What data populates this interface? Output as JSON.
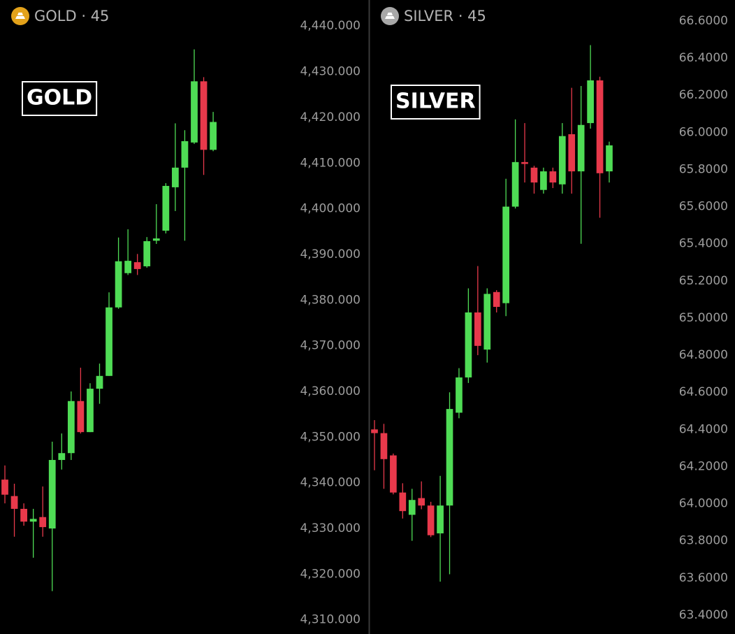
{
  "chart_data": [
    {
      "type": "candlestick",
      "title": "GOLD · 45",
      "annotation": "GOLD",
      "icon_color": "#e3a21a",
      "up_color": "#4fdc55",
      "down_color": "#e8394b",
      "open": [
        4340.7,
        4337.1,
        4334.3,
        4331.5,
        4332.5,
        4330.0,
        4345.0,
        4346.5,
        4357.9,
        4351.1,
        4360.6,
        4363.4,
        4378.4,
        4385.9,
        4388.3,
        4387.4,
        4393.0,
        4395.2,
        4404.7,
        4409.0,
        4414.5,
        4427.9,
        4412.9
      ],
      "high": [
        4343.8,
        4339.8,
        4335.5,
        4334.3,
        4339.2,
        4349.0,
        4350.8,
        4360.0,
        4365.2,
        4361.8,
        4366.1,
        4381.7,
        4393.7,
        4395.5,
        4390.1,
        4393.8,
        4401.0,
        4405.6,
        4418.7,
        4417.2,
        4434.9,
        4428.8,
        4421.2
      ],
      "low": [
        4335.5,
        4328.2,
        4330.6,
        4323.6,
        4328.2,
        4316.3,
        4342.9,
        4345.0,
        4350.8,
        4351.1,
        4357.3,
        4363.4,
        4378.1,
        4385.5,
        4385.5,
        4387.1,
        4392.3,
        4394.6,
        4399.5,
        4393.0,
        4414.2,
        4407.4,
        4412.6
      ],
      "close": [
        4337.4,
        4334.3,
        4331.5,
        4332.1,
        4330.3,
        4345.0,
        4346.5,
        4357.9,
        4351.1,
        4360.6,
        4363.4,
        4378.4,
        4388.5,
        4388.6,
        4386.8,
        4392.9,
        4393.5,
        4405.0,
        4409.0,
        4414.8,
        4427.9,
        4412.9,
        4419.0
      ],
      "ylim": [
        4306.9,
        4445.7
      ],
      "yticks": [
        {
          "value": 4440,
          "label": "4,440.000"
        },
        {
          "value": 4430,
          "label": "4,430.000"
        },
        {
          "value": 4420,
          "label": "4,420.000"
        },
        {
          "value": 4410,
          "label": "4,410.000"
        },
        {
          "value": 4400,
          "label": "4,400.000"
        },
        {
          "value": 4390,
          "label": "4,390.000"
        },
        {
          "value": 4380,
          "label": "4,380.000"
        },
        {
          "value": 4370,
          "label": "4,370.000"
        },
        {
          "value": 4360,
          "label": "4,360.000"
        },
        {
          "value": 4350,
          "label": "4,350.000"
        },
        {
          "value": 4340,
          "label": "4,340.000"
        },
        {
          "value": 4330,
          "label": "4,330.000"
        },
        {
          "value": 4320,
          "label": "4,320.000"
        },
        {
          "value": 4310,
          "label": "4,310.000"
        }
      ]
    },
    {
      "type": "candlestick",
      "title": "SILVER · 45",
      "annotation": "SILVER",
      "icon_color": "#a8a8a8",
      "up_color": "#4fdc55",
      "down_color": "#e8394b",
      "open": [
        64.4,
        64.38,
        64.26,
        64.06,
        63.94,
        64.03,
        63.99,
        63.84,
        63.99,
        64.49,
        64.68,
        65.03,
        64.83,
        65.14,
        65.08,
        65.6,
        65.84,
        65.81,
        65.69,
        65.79,
        65.72,
        65.99,
        65.79,
        66.05,
        66.28,
        65.79
      ],
      "high": [
        64.45,
        64.43,
        64.27,
        64.11,
        64.08,
        64.12,
        64.01,
        64.15,
        64.6,
        64.73,
        65.16,
        65.28,
        65.16,
        65.15,
        65.75,
        66.07,
        66.05,
        65.82,
        65.81,
        65.81,
        66.05,
        66.24,
        66.25,
        66.47,
        66.3,
        65.95
      ],
      "low": [
        64.18,
        64.08,
        64.05,
        63.92,
        63.8,
        63.97,
        63.82,
        63.58,
        63.62,
        64.46,
        64.65,
        64.8,
        64.76,
        65.03,
        65.01,
        65.59,
        65.73,
        65.67,
        65.67,
        65.7,
        65.67,
        65.67,
        65.4,
        66.02,
        65.54,
        65.73
      ],
      "close": [
        64.38,
        64.24,
        64.06,
        63.96,
        64.02,
        63.99,
        63.83,
        63.99,
        64.51,
        64.68,
        65.03,
        64.85,
        65.13,
        65.06,
        65.6,
        65.84,
        65.83,
        65.73,
        65.79,
        65.73,
        65.98,
        65.79,
        66.04,
        66.28,
        65.78,
        65.93
      ],
      "ylim": [
        63.298,
        66.713
      ],
      "yticks": [
        {
          "value": 66.6,
          "label": "66.6000"
        },
        {
          "value": 66.4,
          "label": "66.4000"
        },
        {
          "value": 66.2,
          "label": "66.2000"
        },
        {
          "value": 66.0,
          "label": "66.0000"
        },
        {
          "value": 65.8,
          "label": "65.8000"
        },
        {
          "value": 65.6,
          "label": "65.6000"
        },
        {
          "value": 65.4,
          "label": "65.4000"
        },
        {
          "value": 65.2,
          "label": "65.2000"
        },
        {
          "value": 65.0,
          "label": "65.0000"
        },
        {
          "value": 64.8,
          "label": "64.8000"
        },
        {
          "value": 64.6,
          "label": "64.6000"
        },
        {
          "value": 64.4,
          "label": "64.4000"
        },
        {
          "value": 64.2,
          "label": "64.2000"
        },
        {
          "value": 64.0,
          "label": "64.0000"
        },
        {
          "value": 63.8,
          "label": "63.8000"
        },
        {
          "value": 63.6,
          "label": "63.6000"
        },
        {
          "value": 63.4,
          "label": "63.4000"
        }
      ]
    }
  ]
}
